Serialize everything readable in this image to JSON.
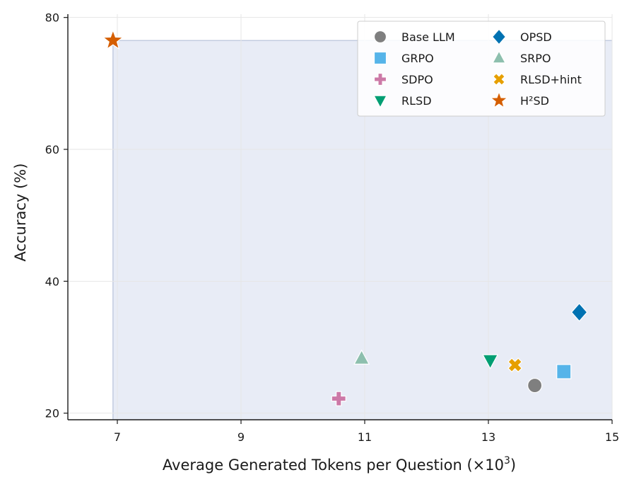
{
  "chart_data": {
    "type": "scatter",
    "title": "",
    "xlabel_main": "Average Generated Tokens per Question (×10",
    "xlabel_sup": "3",
    "xlabel_close": ")",
    "ylabel": "Accuracy (%)",
    "xlim": [
      6.2,
      15.0
    ],
    "ylim": [
      19.0,
      80.5
    ],
    "xticks": [
      7,
      9,
      11,
      13,
      15
    ],
    "yticks": [
      20,
      40,
      60,
      80
    ],
    "xtick_labels": [
      "7",
      "9",
      "11",
      "13",
      "15"
    ],
    "ytick_labels": [
      "20",
      "40",
      "60",
      "80"
    ],
    "grid": true,
    "legend_position": "top-right",
    "highlight_region": {
      "x0": 6.93,
      "x1": 15.0,
      "y0": 19.0,
      "y1": 76.5,
      "color": "#e8ecf6"
    },
    "series": [
      {
        "name": "Base LLM",
        "marker": "circle",
        "color": "#7f7f7f",
        "x": 13.75,
        "y": 24.2
      },
      {
        "name": "GRPO",
        "marker": "square",
        "color": "#56b4e9",
        "x": 14.22,
        "y": 26.3
      },
      {
        "name": "SDPO",
        "marker": "plus",
        "color": "#cc79a7",
        "x": 10.58,
        "y": 22.2
      },
      {
        "name": "RLSD",
        "marker": "triangle-down",
        "color": "#009e73",
        "x": 13.03,
        "y": 28.0
      },
      {
        "name": "OPSD",
        "marker": "diamond",
        "color": "#0072b2",
        "x": 14.47,
        "y": 35.3
      },
      {
        "name": "SRPO",
        "marker": "triangle-up",
        "color": "#8dbfae",
        "x": 10.95,
        "y": 28.3
      },
      {
        "name": "RLSD+hint",
        "marker": "x",
        "color": "#e69f00",
        "x": 13.43,
        "y": 27.3
      },
      {
        "name": "H²SD",
        "marker": "star",
        "color": "#d55e00",
        "x": 6.93,
        "y": 76.5
      }
    ]
  }
}
